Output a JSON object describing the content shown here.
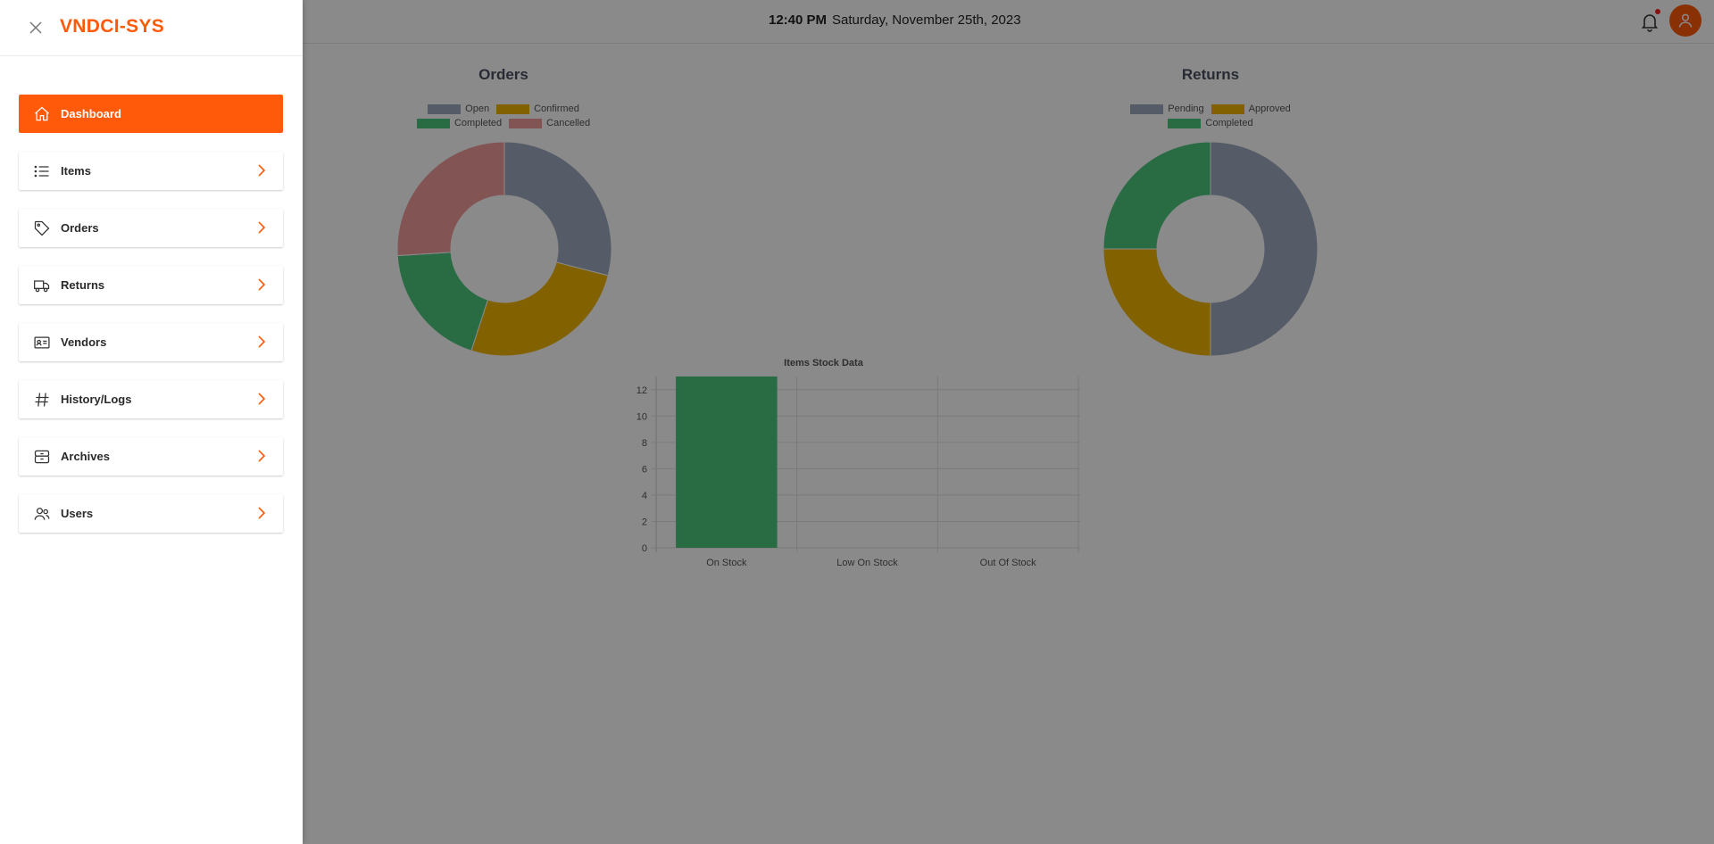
{
  "app": {
    "brand": "VNDCI-SYS"
  },
  "header": {
    "time": "12:40 PM",
    "date": "Saturday, November 25th, 2023"
  },
  "colors": {
    "accent": "#ff5a0a",
    "slate": "#9ea9bf",
    "gold": "#f0b400",
    "green": "#4dc77f",
    "red": "#f29b9b"
  },
  "sidebar": {
    "items": [
      {
        "label": "Dashboard",
        "icon": "home-icon",
        "active": true
      },
      {
        "label": "Items",
        "icon": "list-icon"
      },
      {
        "label": "Orders",
        "icon": "tag-icon"
      },
      {
        "label": "Returns",
        "icon": "truck-icon"
      },
      {
        "label": "Vendors",
        "icon": "id-card-icon"
      },
      {
        "label": "History/Logs",
        "icon": "hash-icon"
      },
      {
        "label": "Archives",
        "icon": "archive-icon"
      },
      {
        "label": "Users",
        "icon": "users-icon"
      }
    ]
  },
  "chart_data": [
    {
      "type": "pie",
      "title": "Orders",
      "labels": [
        "Open",
        "Confirmed",
        "Completed",
        "Cancelled"
      ],
      "values": [
        29,
        26,
        19,
        26
      ],
      "colors": [
        "#9ea9bf",
        "#f0b400",
        "#4dc77f",
        "#f29b9b"
      ],
      "legend": "top"
    },
    {
      "type": "pie",
      "title": "Returns",
      "labels": [
        "Pending",
        "Approved",
        "Completed"
      ],
      "values": [
        50,
        25,
        25
      ],
      "colors": [
        "#9ea9bf",
        "#f0b400",
        "#4dc77f"
      ],
      "legend": "top"
    },
    {
      "type": "bar",
      "title": "Items Stock Data",
      "categories": [
        "On Stock",
        "Low On Stock",
        "Out Of Stock"
      ],
      "values": [
        13,
        0,
        0
      ],
      "yticks": [
        "0",
        "2",
        "4",
        "6",
        "8",
        "10",
        "12"
      ],
      "ylim": [
        0,
        13
      ],
      "color": "#4dc77f",
      "grid": true
    }
  ]
}
